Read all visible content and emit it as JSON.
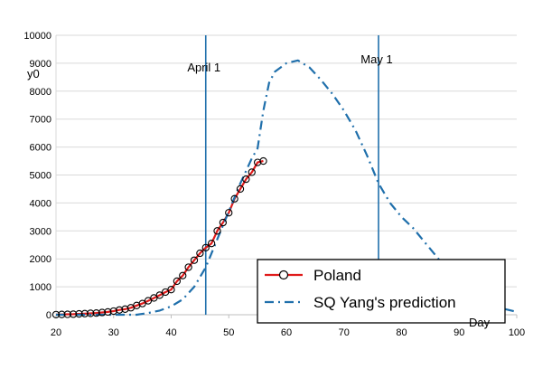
{
  "chart_data": {
    "type": "line",
    "xlabel": "Day",
    "ylabel": "y0",
    "xlim": [
      20,
      100
    ],
    "ylim": [
      0,
      10000
    ],
    "x_ticks": [
      "20",
      "30",
      "40",
      "50",
      "60",
      "70",
      "80",
      "90",
      "100"
    ],
    "y_ticks": [
      "0",
      "1000",
      "2000",
      "3000",
      "4000",
      "5000",
      "6000",
      "7000",
      "8000",
      "9000",
      "10000"
    ],
    "grid": "horizontal",
    "legend_position": "bottom-right",
    "vertical_markers": [
      {
        "label": "April 1",
        "x": 46,
        "color": "#1f6fab"
      },
      {
        "label": "May 1",
        "x": 76,
        "color": "#1f6fab"
      }
    ],
    "series": [
      {
        "name": "Poland",
        "style": "line-with-circle-markers",
        "line_color": "#e01b1b",
        "marker_color": "#000000",
        "x": [
          20,
          21,
          22,
          23,
          24,
          25,
          26,
          27,
          28,
          29,
          30,
          31,
          32,
          33,
          34,
          35,
          36,
          37,
          38,
          39,
          40,
          41,
          42,
          43,
          44,
          45,
          46,
          47,
          48,
          49,
          50,
          51,
          52,
          53,
          54,
          55,
          56
        ],
        "y": [
          5,
          10,
          15,
          20,
          30,
          40,
          50,
          60,
          80,
          100,
          130,
          170,
          200,
          250,
          330,
          400,
          500,
          600,
          700,
          810,
          900,
          1200,
          1400,
          1700,
          1950,
          2200,
          2400,
          2550,
          3000,
          3300,
          3650,
          4150,
          4500,
          4850,
          5100,
          5450,
          5500
        ]
      },
      {
        "name": "SQ Yang's prediction",
        "style": "dash-dot",
        "line_color": "#1f6fab",
        "x": [
          20,
          25,
          30,
          34,
          36,
          38,
          40,
          42,
          44,
          46,
          48,
          50,
          52,
          54,
          55,
          56,
          57,
          58,
          60,
          62,
          64,
          66,
          68,
          70,
          72,
          74,
          76,
          78,
          80,
          82,
          84,
          86,
          88,
          90,
          92,
          94,
          96,
          98,
          100
        ],
        "y": [
          0,
          0,
          0,
          0,
          60,
          150,
          300,
          550,
          1000,
          1700,
          2700,
          3700,
          4700,
          5600,
          5950,
          7300,
          8300,
          8700,
          9000,
          9100,
          8850,
          8400,
          7900,
          7300,
          6600,
          5700,
          4700,
          4000,
          3500,
          3100,
          2600,
          2100,
          1600,
          1150,
          800,
          550,
          350,
          200,
          100
        ]
      }
    ]
  }
}
